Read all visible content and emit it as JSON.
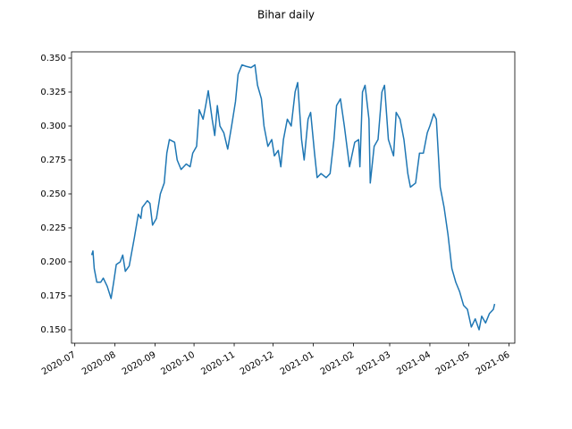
{
  "chart_data": {
    "type": "line",
    "title": "Bihar daily",
    "x": [
      13,
      14,
      15,
      17,
      20,
      22,
      25,
      28,
      30,
      32,
      35,
      37,
      39,
      42,
      46,
      49,
      51,
      52,
      56,
      58,
      60,
      63,
      66,
      69,
      71,
      73,
      77,
      79,
      82,
      86,
      89,
      91,
      94,
      96,
      99,
      101,
      103,
      106,
      108,
      110,
      112,
      115,
      118,
      121,
      124,
      126,
      129,
      132,
      136,
      139,
      141,
      144,
      146,
      149,
      152,
      154,
      157,
      159,
      161,
      164,
      167,
      170,
      172,
      175,
      177,
      180,
      182,
      185,
      187,
      190,
      194,
      197,
      200,
      202,
      205,
      208,
      210,
      212,
      216,
      219,
      220,
      222,
      224,
      227,
      228,
      231,
      234,
      237,
      239,
      242,
      246,
      248,
      251,
      254,
      257,
      259,
      263,
      266,
      269,
      272,
      274,
      277,
      279,
      282,
      285,
      288,
      291,
      294,
      297,
      300,
      303,
      306,
      309,
      312,
      314,
      317,
      320,
      323,
      324
    ],
    "series": [
      {
        "name": "Bihar",
        "color": "#1f77b4",
        "values": [
          0.205,
          0.208,
          0.195,
          0.185,
          0.185,
          0.188,
          0.182,
          0.173,
          0.185,
          0.198,
          0.2,
          0.205,
          0.193,
          0.197,
          0.218,
          0.235,
          0.232,
          0.24,
          0.245,
          0.243,
          0.227,
          0.232,
          0.25,
          0.258,
          0.28,
          0.29,
          0.288,
          0.275,
          0.268,
          0.272,
          0.27,
          0.28,
          0.285,
          0.312,
          0.305,
          0.315,
          0.326,
          0.305,
          0.293,
          0.315,
          0.3,
          0.295,
          0.283,
          0.3,
          0.318,
          0.338,
          0.345,
          0.344,
          0.343,
          0.345,
          0.33,
          0.32,
          0.3,
          0.285,
          0.29,
          0.278,
          0.282,
          0.27,
          0.29,
          0.305,
          0.3,
          0.325,
          0.332,
          0.29,
          0.275,
          0.305,
          0.31,
          0.28,
          0.262,
          0.265,
          0.262,
          0.265,
          0.29,
          0.315,
          0.32,
          0.3,
          0.285,
          0.27,
          0.288,
          0.29,
          0.27,
          0.325,
          0.33,
          0.305,
          0.258,
          0.285,
          0.29,
          0.325,
          0.33,
          0.29,
          0.278,
          0.31,
          0.305,
          0.29,
          0.265,
          0.255,
          0.258,
          0.28,
          0.28,
          0.295,
          0.3,
          0.309,
          0.305,
          0.255,
          0.24,
          0.22,
          0.195,
          0.185,
          0.178,
          0.168,
          0.165,
          0.152,
          0.158,
          0.15,
          0.16,
          0.155,
          0.162,
          0.165,
          0.169
        ]
      }
    ],
    "xlim": [
      -2.55,
      339.55
    ],
    "xticks": [
      {
        "value": 0,
        "label": "2020-07"
      },
      {
        "value": 31,
        "label": "2020-08"
      },
      {
        "value": 62,
        "label": "2020-09"
      },
      {
        "value": 92,
        "label": "2020-10"
      },
      {
        "value": 123,
        "label": "2020-11"
      },
      {
        "value": 153,
        "label": "2020-12"
      },
      {
        "value": 184,
        "label": "2021-01"
      },
      {
        "value": 215,
        "label": "2021-02"
      },
      {
        "value": 243,
        "label": "2021-03"
      },
      {
        "value": 274,
        "label": "2021-04"
      },
      {
        "value": 304,
        "label": "2021-05"
      },
      {
        "value": 335,
        "label": "2021-06"
      }
    ],
    "ylim": [
      0.1401,
      0.3546
    ],
    "yticks": [
      {
        "value": 0.15,
        "label": "0.150"
      },
      {
        "value": 0.175,
        "label": "0.175"
      },
      {
        "value": 0.2,
        "label": "0.200"
      },
      {
        "value": 0.225,
        "label": "0.225"
      },
      {
        "value": 0.25,
        "label": "0.250"
      },
      {
        "value": 0.275,
        "label": "0.275"
      },
      {
        "value": 0.3,
        "label": "0.300"
      },
      {
        "value": 0.325,
        "label": "0.325"
      },
      {
        "value": 0.35,
        "label": "0.350"
      }
    ],
    "grid": false
  }
}
